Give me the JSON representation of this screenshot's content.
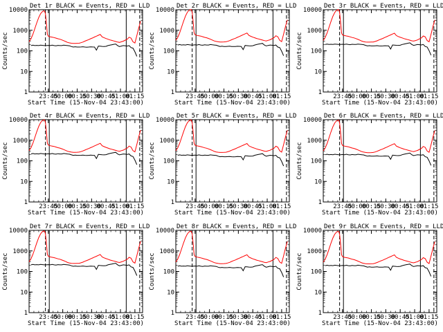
{
  "chart_data": {
    "type": "line",
    "layout": "3x3 grid",
    "shared": {
      "xlabel": "Start Time (15-Nov-04 23:43:00)",
      "ylabel": "Counts/sec",
      "xlim": [
        -18,
        100
      ],
      "ylim": [
        1,
        10000
      ],
      "yscale": "log",
      "x_unit": "minutes from 23:43:00",
      "x_ticks": [
        {
          "x": 2,
          "label": "23:45"
        },
        {
          "x": 17,
          "label": "00:00"
        },
        {
          "x": 32,
          "label": "00:15"
        },
        {
          "x": 47,
          "label": "00:30"
        },
        {
          "x": 62,
          "label": "00:45"
        },
        {
          "x": 77,
          "label": "01:00"
        },
        {
          "x": 92,
          "label": "01:15"
        }
      ],
      "y_ticks": [
        {
          "y": 1,
          "label": "1"
        },
        {
          "y": 10,
          "label": "10"
        },
        {
          "y": 100,
          "label": "100"
        },
        {
          "y": 1000,
          "label": "1000"
        },
        {
          "y": 10000,
          "label": "10000"
        }
      ],
      "series_colors": {
        "events": "#000000",
        "lld": "#ff0000"
      },
      "events_x": [
        -16,
        -14,
        -12,
        -10,
        -8,
        -6,
        -4,
        -2,
        0,
        2,
        4,
        6,
        8,
        10,
        12,
        14,
        16,
        18,
        20,
        22,
        24,
        26,
        28,
        30,
        32,
        34,
        36,
        38,
        40,
        42,
        44,
        46,
        48,
        50,
        52,
        54,
        56,
        58,
        60,
        62,
        64,
        66,
        68,
        70,
        72,
        74,
        76,
        78,
        80,
        82,
        84,
        86,
        88,
        90,
        92,
        94
      ],
      "events_pattern": [
        200,
        210,
        200,
        205,
        200,
        210,
        205,
        200,
        200,
        205,
        200,
        210,
        200,
        195,
        205,
        200,
        200,
        210,
        205,
        200,
        195,
        180,
        170,
        175,
        170,
        170,
        172,
        175,
        170,
        168,
        170,
        174,
        172,
        170,
        120,
        190,
        186,
        182,
        180,
        184,
        200,
        210,
        220,
        230,
        240,
        200,
        180,
        190,
        200,
        195,
        190,
        200,
        160,
        150,
        100,
        60
      ],
      "lld_x": [
        -18,
        -16,
        -14,
        -12,
        -10,
        -8,
        -6,
        -4,
        -2,
        -1,
        0,
        1,
        2,
        4,
        6,
        8,
        10,
        12,
        14,
        16,
        18,
        20,
        22,
        24,
        26,
        28,
        30,
        32,
        34,
        36,
        38,
        40,
        42,
        44,
        46,
        48,
        50,
        52,
        54,
        56,
        58,
        60,
        62,
        64,
        66,
        68,
        70,
        72,
        74,
        76,
        78,
        80,
        82,
        84,
        86,
        88,
        90,
        92,
        94,
        96,
        98
      ],
      "lld_pattern": [
        300,
        420,
        700,
        1300,
        2500,
        4500,
        7000,
        9000,
        9500,
        7000,
        2500,
        700,
        560,
        520,
        500,
        480,
        450,
        420,
        400,
        370,
        340,
        310,
        280,
        265,
        255,
        250,
        250,
        252,
        255,
        270,
        290,
        320,
        350,
        380,
        420,
        460,
        510,
        560,
        620,
        680,
        520,
        470,
        430,
        400,
        370,
        350,
        330,
        310,
        290,
        280,
        300,
        320,
        360,
        400,
        500,
        450,
        300,
        260,
        600,
        1400,
        3000
      ],
      "vertical_lines": [
        {
          "x": -1,
          "style": "dashed"
        },
        {
          "x": 3,
          "style": "solid"
        },
        {
          "x": 83,
          "style": "solid"
        },
        {
          "x": 97,
          "style": "dashed"
        }
      ]
    },
    "panels": [
      {
        "title": "Det 1r BLACK = Events, RED = LLD"
      },
      {
        "title": "Det 2r BLACK = Events, RED = LLD"
      },
      {
        "title": "Det 3r BLACK = Events, RED = LLD"
      },
      {
        "title": "Det 4r BLACK = Events, RED = LLD"
      },
      {
        "title": "Det 5r BLACK = Events, RED = LLD"
      },
      {
        "title": "Det 6r BLACK = Events, RED = LLD"
      },
      {
        "title": "Det 7r BLACK = Events, RED = LLD"
      },
      {
        "title": "Det 8r BLACK = Events, RED = LLD"
      },
      {
        "title": "Det 9r BLACK = Events, RED = LLD"
      }
    ]
  }
}
